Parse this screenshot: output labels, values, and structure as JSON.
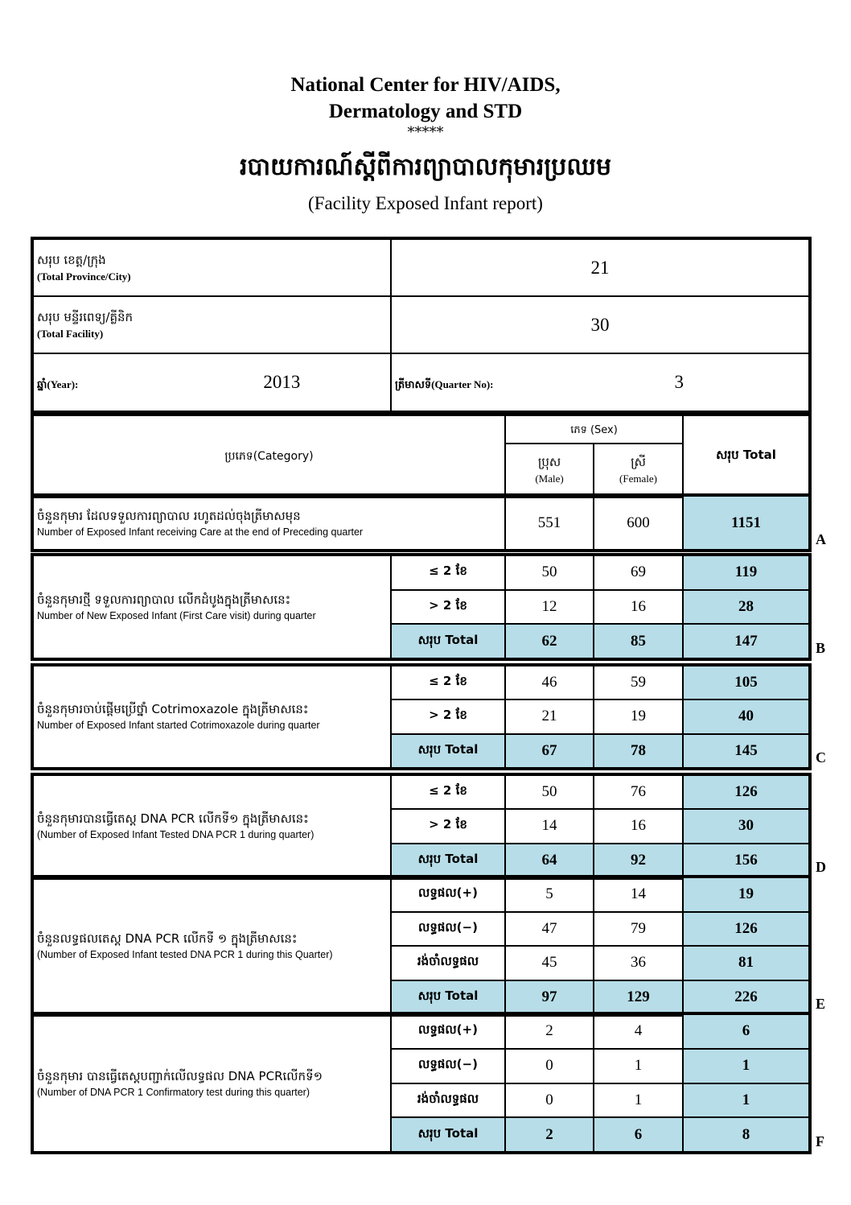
{
  "header": {
    "org_line1": "National Center for HIV/AIDS,",
    "org_line2": "Dermatology and STD",
    "stars": "*****",
    "title_khmer": "របាយការណ៍ស្តីពីការព្យាបាលកុមារប្រឈម",
    "title_english": "(Facility Exposed Infant report)"
  },
  "info": {
    "province_label_kh": "សរុប ខេត្ត/ក្រុង",
    "province_label_en": "(Total Province/City)",
    "province_value": "21",
    "facility_label_kh": "សរុប មន្ទីរពេទ្យ/គ្លីនិក",
    "facility_label_en": "(Total Facility)",
    "facility_value": "30",
    "year_label": "ឆ្នាំ(Year):",
    "year_value": "2013",
    "quarter_label": "ត្រីមាសទី(Quarter No):",
    "quarter_value": "3"
  },
  "columns": {
    "category": "ប្រភេទ(Category)",
    "sex": "ភេទ  (Sex)",
    "male_kh": "ប្រុស",
    "male_en": "(Male)",
    "female_kh": "ស្រី",
    "female_en": "(Female)",
    "total": "សរុប  Total"
  },
  "sections": {
    "A": {
      "letter": "A",
      "kh": "ចំនួនកុមារ ដែលទទួលការព្យាបាល រហូតដល់ចុងត្រីមាសមុន",
      "en": "Number of Exposed Infant receiving Care at the end of Preceding quarter",
      "rows": [
        {
          "label": "",
          "male": "551",
          "female": "600",
          "total": "1151"
        }
      ]
    },
    "B": {
      "letter": "B",
      "kh": "ចំនួនកុមារថ្មី ទទួលការព្យាបាល លើកដំបូងក្នុងត្រីមាសនេះ",
      "en": "Number of New Exposed Infant (First Care visit) during quarter",
      "rows": [
        {
          "label": "≤ 2 ខែ",
          "male": "50",
          "female": "69",
          "total": "119"
        },
        {
          "label": "> 2 ខែ",
          "male": "12",
          "female": "16",
          "total": "28"
        },
        {
          "label": "សរុប Total",
          "male": "62",
          "female": "85",
          "total": "147"
        }
      ]
    },
    "C": {
      "letter": "C",
      "kh": "ចំនួនកុមារចាប់ផ្តើមប្រើថ្នាំ Cotrimoxazole ក្នុងត្រីមាសនេះ",
      "en": "Number of Exposed Infant started Cotrimoxazole during quarter",
      "rows": [
        {
          "label": "≤ 2 ខែ",
          "male": "46",
          "female": "59",
          "total": "105"
        },
        {
          "label": "> 2 ខែ",
          "male": "21",
          "female": "19",
          "total": "40"
        },
        {
          "label": "សរុប Total",
          "male": "67",
          "female": "78",
          "total": "145"
        }
      ]
    },
    "D": {
      "letter": "D",
      "kh": "ចំនួនកុមារបានធ្វើតេស្ត  DNA PCR លើកទី១ ក្នុងត្រីមាសនេះ",
      "en": "(Number of Exposed Infant Tested DNA PCR 1 during quarter)",
      "rows": [
        {
          "label": "≤ 2 ខែ",
          "male": "50",
          "female": "76",
          "total": "126"
        },
        {
          "label": "> 2 ខែ",
          "male": "14",
          "female": "16",
          "total": "30"
        },
        {
          "label": "សរុប Total",
          "male": "64",
          "female": "92",
          "total": "156"
        }
      ]
    },
    "E": {
      "letter": "E",
      "kh": "ចំនួនលទ្ធផលតេស្ត DNA PCR លើកទី ១ ក្នុងត្រីមាសនេះ",
      "en": "(Number of Exposed Infant tested DNA PCR 1 during this Quarter)",
      "rows": [
        {
          "label": "លទ្ធផល(+)",
          "male": "5",
          "female": "14",
          "total": "19"
        },
        {
          "label": "លទ្ធផល(−)",
          "male": "47",
          "female": "79",
          "total": "126"
        },
        {
          "label": "រង់ចាំលទ្ធផល",
          "male": "45",
          "female": "36",
          "total": "81"
        },
        {
          "label": "សរុប Total",
          "male": "97",
          "female": "129",
          "total": "226"
        }
      ]
    },
    "F": {
      "letter": "F",
      "kh": "ចំនួនកុមារ បានធ្វើតេស្តបញ្ជាក់លើលទ្ធផល DNA PCRលើកទី១",
      "en": "(Number of DNA PCR 1 Confirmatory test during this quarter)",
      "rows": [
        {
          "label": "លទ្ធផល(+)",
          "male": "2",
          "female": "4",
          "total": "6"
        },
        {
          "label": "លទ្ធផល(−)",
          "male": "0",
          "female": "1",
          "total": "1"
        },
        {
          "label": "រង់ចាំលទ្ធផល",
          "male": "0",
          "female": "1",
          "total": "1"
        },
        {
          "label": "សរុប Total",
          "male": "2",
          "female": "6",
          "total": "8"
        }
      ]
    }
  },
  "colors": {
    "highlight": "#b7dde8"
  }
}
